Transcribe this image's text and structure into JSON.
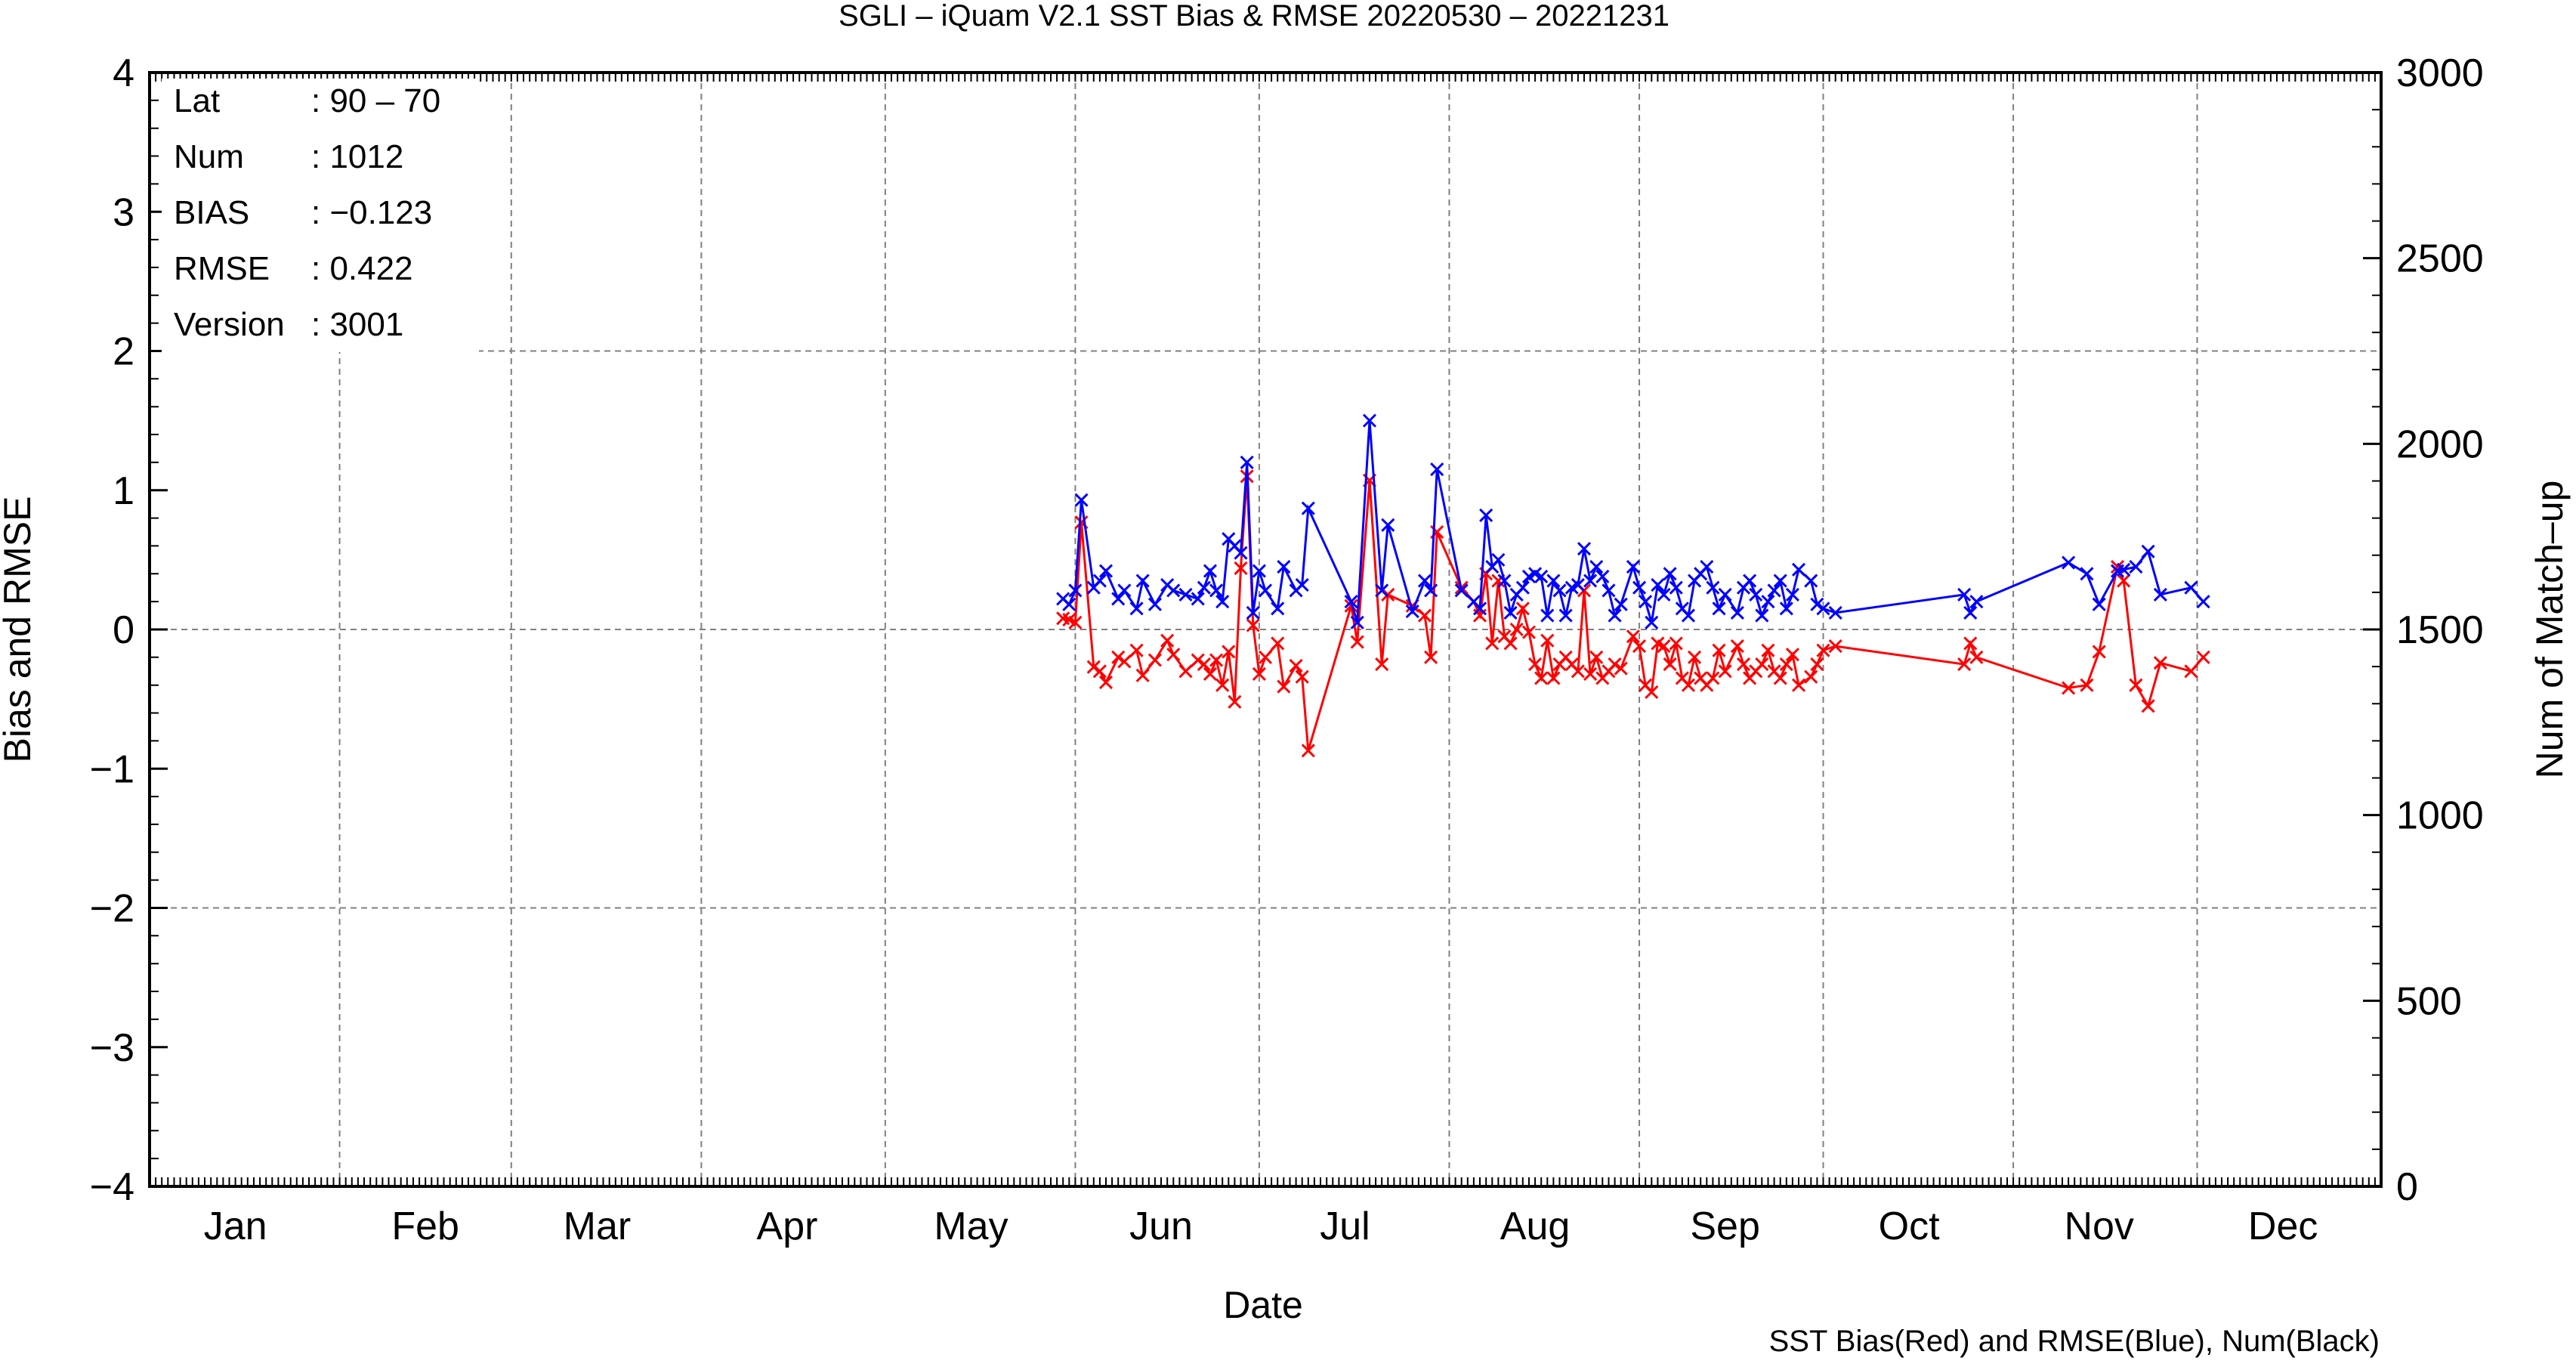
{
  "chart_data": {
    "type": "line",
    "title": "SGLI – iQuam V2.1 SST Bias & RMSE 20220530 – 20221231",
    "xlabel": "Date",
    "ylabel": "Bias and RMSE",
    "y2label": "Num of Match–up",
    "footer": "SST Bias(Red) and RMSE(Blue), Num(Black)",
    "xlim": [
      "2022-01-01",
      "2022-12-31"
    ],
    "ylim": [
      -4,
      4
    ],
    "y2lim": [
      0,
      3000
    ],
    "y_ticks": [
      "−4",
      "−3",
      "−2",
      "−1",
      "0",
      "1",
      "2",
      "3",
      "4"
    ],
    "y2_ticks": [
      "0",
      "500",
      "1000",
      "1500",
      "2000",
      "2500",
      "3000"
    ],
    "x_tick_labels": [
      "Jan",
      "Feb",
      "Mar",
      "Apr",
      "May",
      "Jun",
      "Jul",
      "Aug",
      "Sep",
      "Oct",
      "Nov",
      "Dec"
    ],
    "grid": true,
    "stats": [
      {
        "key": "Lat",
        "value": ": 90 – 70"
      },
      {
        "key": "Num",
        "value": ": 1012"
      },
      {
        "key": "BIAS",
        "value": ": −0.123"
      },
      {
        "key": "RMSE",
        "value": ": 0.422"
      },
      {
        "key": "Version",
        "value": ": 3001"
      }
    ],
    "series": [
      {
        "color": "#ff0000",
        "axis": "left",
        "points": [
          [
            "2022-05-30",
            0.08
          ],
          [
            "2022-05-31",
            0.07
          ],
          [
            "2022-06-01",
            0.05
          ],
          [
            "2022-06-02",
            0.77
          ],
          [
            "2022-06-04",
            -0.27
          ],
          [
            "2022-06-05",
            -0.3
          ],
          [
            "2022-06-06",
            -0.38
          ],
          [
            "2022-06-08",
            -0.2
          ],
          [
            "2022-06-09",
            -0.23
          ],
          [
            "2022-06-11",
            -0.15
          ],
          [
            "2022-06-12",
            -0.33
          ],
          [
            "2022-06-14",
            -0.22
          ],
          [
            "2022-06-16",
            -0.08
          ],
          [
            "2022-06-17",
            -0.18
          ],
          [
            "2022-06-19",
            -0.3
          ],
          [
            "2022-06-21",
            -0.22
          ],
          [
            "2022-06-22",
            -0.25
          ],
          [
            "2022-06-23",
            -0.32
          ],
          [
            "2022-06-24",
            -0.22
          ],
          [
            "2022-06-25",
            -0.4
          ],
          [
            "2022-06-26",
            -0.16
          ],
          [
            "2022-06-27",
            -0.52
          ],
          [
            "2022-06-28",
            0.44
          ],
          [
            "2022-06-29",
            1.1
          ],
          [
            "2022-06-30",
            0.03
          ],
          [
            "2022-07-01",
            -0.32
          ],
          [
            "2022-07-02",
            -0.2
          ],
          [
            "2022-07-04",
            -0.1
          ],
          [
            "2022-07-05",
            -0.41
          ],
          [
            "2022-07-07",
            -0.26
          ],
          [
            "2022-07-08",
            -0.34
          ],
          [
            "2022-07-09",
            -0.87
          ],
          [
            "2022-07-16",
            0.17
          ],
          [
            "2022-07-17",
            -0.09
          ],
          [
            "2022-07-19",
            1.07
          ],
          [
            "2022-07-21",
            -0.25
          ],
          [
            "2022-07-22",
            0.25
          ],
          [
            "2022-07-26",
            0.17
          ],
          [
            "2022-07-28",
            0.1
          ],
          [
            "2022-07-29",
            -0.2
          ],
          [
            "2022-07-30",
            0.7
          ],
          [
            "2022-08-03",
            0.3
          ],
          [
            "2022-08-05",
            0.2
          ],
          [
            "2022-08-06",
            0.1
          ],
          [
            "2022-08-07",
            0.4
          ],
          [
            "2022-08-08",
            -0.1
          ],
          [
            "2022-08-09",
            0.35
          ],
          [
            "2022-08-10",
            -0.05
          ],
          [
            "2022-08-11",
            -0.1
          ],
          [
            "2022-08-12",
            0.0
          ],
          [
            "2022-08-13",
            0.15
          ],
          [
            "2022-08-14",
            -0.02
          ],
          [
            "2022-08-15",
            -0.25
          ],
          [
            "2022-08-16",
            -0.35
          ],
          [
            "2022-08-17",
            -0.08
          ],
          [
            "2022-08-18",
            -0.35
          ],
          [
            "2022-08-19",
            -0.25
          ],
          [
            "2022-08-20",
            -0.2
          ],
          [
            "2022-08-21",
            -0.25
          ],
          [
            "2022-08-22",
            -0.3
          ],
          [
            "2022-08-23",
            0.28
          ],
          [
            "2022-08-24",
            -0.32
          ],
          [
            "2022-08-25",
            -0.2
          ],
          [
            "2022-08-26",
            -0.35
          ],
          [
            "2022-08-27",
            -0.3
          ],
          [
            "2022-08-28",
            -0.25
          ],
          [
            "2022-08-29",
            -0.28
          ],
          [
            "2022-08-31",
            -0.05
          ],
          [
            "2022-09-01",
            -0.12
          ],
          [
            "2022-09-02",
            -0.4
          ],
          [
            "2022-09-03",
            -0.45
          ],
          [
            "2022-09-04",
            -0.1
          ],
          [
            "2022-09-05",
            -0.12
          ],
          [
            "2022-09-06",
            -0.25
          ],
          [
            "2022-09-07",
            -0.1
          ],
          [
            "2022-09-08",
            -0.35
          ],
          [
            "2022-09-09",
            -0.4
          ],
          [
            "2022-09-10",
            -0.2
          ],
          [
            "2022-09-11",
            -0.35
          ],
          [
            "2022-09-12",
            -0.4
          ],
          [
            "2022-09-13",
            -0.35
          ],
          [
            "2022-09-14",
            -0.15
          ],
          [
            "2022-09-15",
            -0.3
          ],
          [
            "2022-09-17",
            -0.12
          ],
          [
            "2022-09-18",
            -0.25
          ],
          [
            "2022-09-19",
            -0.35
          ],
          [
            "2022-09-20",
            -0.3
          ],
          [
            "2022-09-21",
            -0.25
          ],
          [
            "2022-09-22",
            -0.15
          ],
          [
            "2022-09-23",
            -0.3
          ],
          [
            "2022-09-24",
            -0.35
          ],
          [
            "2022-09-25",
            -0.25
          ],
          [
            "2022-09-26",
            -0.18
          ],
          [
            "2022-09-27",
            -0.4
          ],
          [
            "2022-09-29",
            -0.34
          ],
          [
            "2022-09-30",
            -0.25
          ],
          [
            "2022-10-01",
            -0.15
          ],
          [
            "2022-10-03",
            -0.12
          ],
          [
            "2022-10-24",
            -0.25
          ],
          [
            "2022-10-25",
            -0.1
          ],
          [
            "2022-10-26",
            -0.2
          ],
          [
            "2022-11-10",
            -0.42
          ],
          [
            "2022-11-13",
            -0.4
          ],
          [
            "2022-11-15",
            -0.16
          ],
          [
            "2022-11-18",
            0.45
          ],
          [
            "2022-11-19",
            0.35
          ],
          [
            "2022-11-21",
            -0.4
          ],
          [
            "2022-11-23",
            -0.55
          ],
          [
            "2022-11-25",
            -0.24
          ],
          [
            "2022-11-30",
            -0.3
          ],
          [
            "2022-12-02",
            -0.2
          ]
        ]
      },
      {
        "color": "#0000ff",
        "axis": "left",
        "points": [
          [
            "2022-05-30",
            0.22
          ],
          [
            "2022-05-31",
            0.18
          ],
          [
            "2022-06-01",
            0.28
          ],
          [
            "2022-06-02",
            0.93
          ],
          [
            "2022-06-04",
            0.3
          ],
          [
            "2022-06-05",
            0.35
          ],
          [
            "2022-06-06",
            0.42
          ],
          [
            "2022-06-08",
            0.22
          ],
          [
            "2022-06-09",
            0.28
          ],
          [
            "2022-06-11",
            0.15
          ],
          [
            "2022-06-12",
            0.35
          ],
          [
            "2022-06-14",
            0.18
          ],
          [
            "2022-06-16",
            0.32
          ],
          [
            "2022-06-17",
            0.28
          ],
          [
            "2022-06-19",
            0.25
          ],
          [
            "2022-06-21",
            0.22
          ],
          [
            "2022-06-22",
            0.3
          ],
          [
            "2022-06-23",
            0.42
          ],
          [
            "2022-06-24",
            0.28
          ],
          [
            "2022-06-25",
            0.2
          ],
          [
            "2022-06-26",
            0.65
          ],
          [
            "2022-06-27",
            0.6
          ],
          [
            "2022-06-28",
            0.55
          ],
          [
            "2022-06-29",
            1.2
          ],
          [
            "2022-06-30",
            0.12
          ],
          [
            "2022-07-01",
            0.42
          ],
          [
            "2022-07-02",
            0.28
          ],
          [
            "2022-07-04",
            0.15
          ],
          [
            "2022-07-05",
            0.45
          ],
          [
            "2022-07-07",
            0.28
          ],
          [
            "2022-07-08",
            0.32
          ],
          [
            "2022-07-09",
            0.87
          ],
          [
            "2022-07-16",
            0.2
          ],
          [
            "2022-07-17",
            0.05
          ],
          [
            "2022-07-19",
            1.5
          ],
          [
            "2022-07-21",
            0.28
          ],
          [
            "2022-07-22",
            0.75
          ],
          [
            "2022-07-26",
            0.13
          ],
          [
            "2022-07-28",
            0.35
          ],
          [
            "2022-07-29",
            0.28
          ],
          [
            "2022-07-30",
            1.15
          ],
          [
            "2022-08-03",
            0.28
          ],
          [
            "2022-08-05",
            0.2
          ],
          [
            "2022-08-06",
            0.15
          ],
          [
            "2022-08-07",
            0.82
          ],
          [
            "2022-08-08",
            0.45
          ],
          [
            "2022-08-09",
            0.5
          ],
          [
            "2022-08-10",
            0.35
          ],
          [
            "2022-08-11",
            0.12
          ],
          [
            "2022-08-12",
            0.25
          ],
          [
            "2022-08-13",
            0.3
          ],
          [
            "2022-08-14",
            0.38
          ],
          [
            "2022-08-15",
            0.4
          ],
          [
            "2022-08-16",
            0.38
          ],
          [
            "2022-08-17",
            0.1
          ],
          [
            "2022-08-18",
            0.35
          ],
          [
            "2022-08-19",
            0.28
          ],
          [
            "2022-08-20",
            0.1
          ],
          [
            "2022-08-21",
            0.3
          ],
          [
            "2022-08-22",
            0.32
          ],
          [
            "2022-08-23",
            0.58
          ],
          [
            "2022-08-24",
            0.35
          ],
          [
            "2022-08-25",
            0.45
          ],
          [
            "2022-08-26",
            0.38
          ],
          [
            "2022-08-27",
            0.28
          ],
          [
            "2022-08-28",
            0.1
          ],
          [
            "2022-08-29",
            0.18
          ],
          [
            "2022-08-31",
            0.45
          ],
          [
            "2022-09-01",
            0.3
          ],
          [
            "2022-09-02",
            0.2
          ],
          [
            "2022-09-03",
            0.05
          ],
          [
            "2022-09-04",
            0.32
          ],
          [
            "2022-09-05",
            0.25
          ],
          [
            "2022-09-06",
            0.4
          ],
          [
            "2022-09-07",
            0.3
          ],
          [
            "2022-09-08",
            0.15
          ],
          [
            "2022-09-09",
            0.1
          ],
          [
            "2022-09-10",
            0.35
          ],
          [
            "2022-09-11",
            0.4
          ],
          [
            "2022-09-12",
            0.45
          ],
          [
            "2022-09-13",
            0.3
          ],
          [
            "2022-09-14",
            0.15
          ],
          [
            "2022-09-15",
            0.25
          ],
          [
            "2022-09-17",
            0.12
          ],
          [
            "2022-09-18",
            0.3
          ],
          [
            "2022-09-19",
            0.35
          ],
          [
            "2022-09-20",
            0.25
          ],
          [
            "2022-09-21",
            0.1
          ],
          [
            "2022-09-22",
            0.2
          ],
          [
            "2022-09-23",
            0.28
          ],
          [
            "2022-09-24",
            0.35
          ],
          [
            "2022-09-25",
            0.15
          ],
          [
            "2022-09-26",
            0.25
          ],
          [
            "2022-09-27",
            0.43
          ],
          [
            "2022-09-29",
            0.35
          ],
          [
            "2022-09-30",
            0.18
          ],
          [
            "2022-10-01",
            0.15
          ],
          [
            "2022-10-03",
            0.12
          ],
          [
            "2022-10-24",
            0.25
          ],
          [
            "2022-10-25",
            0.12
          ],
          [
            "2022-10-26",
            0.2
          ],
          [
            "2022-11-10",
            0.48
          ],
          [
            "2022-11-13",
            0.4
          ],
          [
            "2022-11-15",
            0.18
          ],
          [
            "2022-11-18",
            0.42
          ],
          [
            "2022-11-19",
            0.43
          ],
          [
            "2022-11-21",
            0.45
          ],
          [
            "2022-11-23",
            0.56
          ],
          [
            "2022-11-25",
            0.25
          ],
          [
            "2022-11-30",
            0.3
          ],
          [
            "2022-12-02",
            0.2
          ]
        ]
      }
    ]
  }
}
